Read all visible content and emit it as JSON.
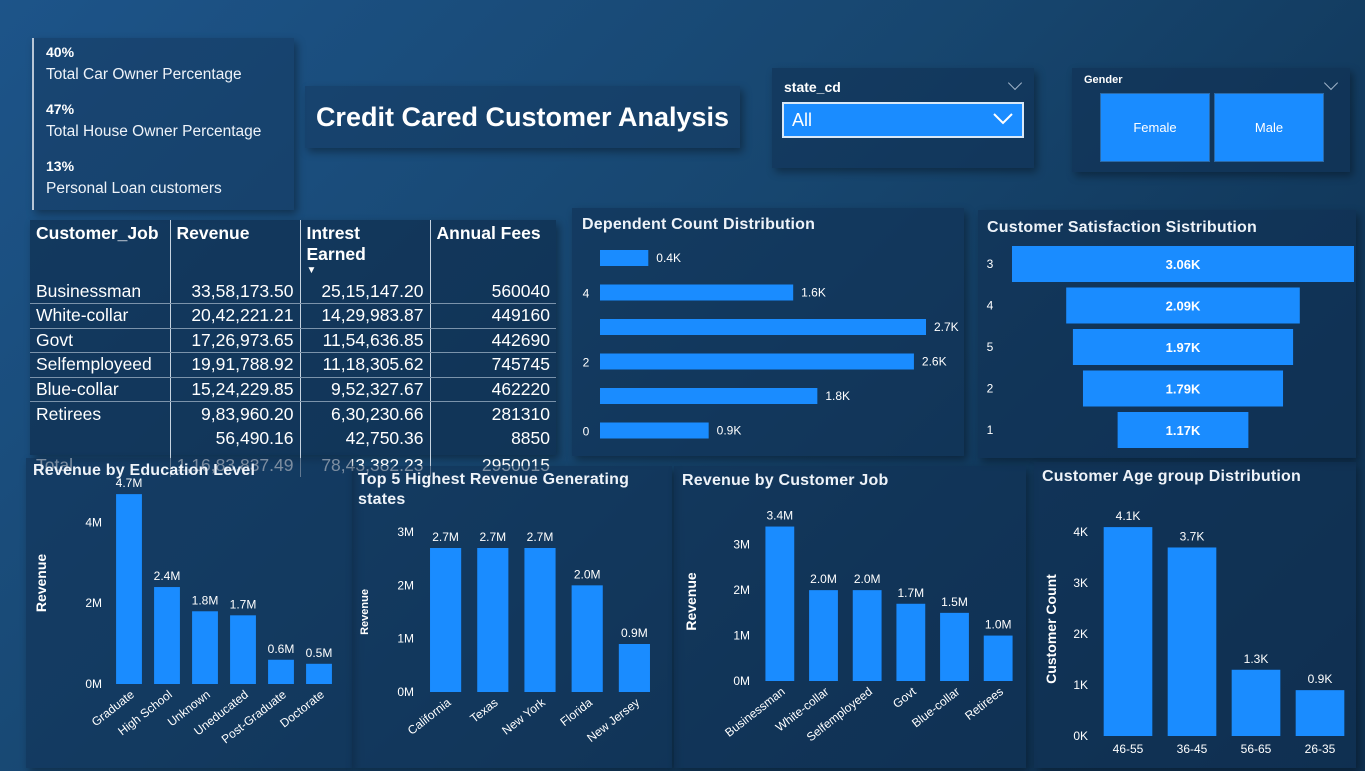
{
  "kpis": [
    {
      "value": "40%",
      "label": "Total Car Owner Percentage"
    },
    {
      "value": "47%",
      "label": "Total House Owner Percentage"
    },
    {
      "value": "13%",
      "label": "Personal Loan customers"
    }
  ],
  "title": "Credit Cared Customer Analysis",
  "state_filter": {
    "label": "state_cd",
    "selected": "All"
  },
  "gender_filter": {
    "label": "Gender",
    "options": [
      "Female",
      "Male"
    ]
  },
  "colors": {
    "bar": "#1a8cff",
    "background": "#17466f"
  },
  "job_table": {
    "headers": [
      "Customer_Job",
      "Revenue",
      "Intrest Earned",
      "Annual Fees"
    ],
    "rows": [
      [
        "Businessman",
        "33,58,173.50",
        "25,15,147.20",
        "560040"
      ],
      [
        "White-collar",
        "20,42,221.21",
        "14,29,983.87",
        "449160"
      ],
      [
        "Govt",
        "17,26,973.65",
        "11,54,636.85",
        "442690"
      ],
      [
        "Selfemployeed",
        "19,91,788.92",
        "11,18,305.62",
        "745745"
      ],
      [
        "Blue-collar",
        "15,24,229.85",
        "9,52,327.67",
        "462220"
      ],
      [
        "Retirees",
        "9,83,960.20",
        "6,30,230.66",
        "281310"
      ],
      [
        "",
        "56,490.16",
        "42,750.36",
        "8850"
      ]
    ],
    "total": [
      "Total",
      "1,16,83,837.49",
      "78,43,382.23",
      "2950015"
    ]
  },
  "chart_data": [
    {
      "id": "dependent",
      "type": "bar",
      "orientation": "horizontal",
      "title": "Dependent Count Distribution",
      "categories": [
        "",
        "4",
        "",
        "2",
        "",
        "0"
      ],
      "values": [
        0.4,
        1.6,
        2.7,
        2.6,
        1.8,
        0.9
      ],
      "labels": [
        "0.4K",
        "1.6K",
        "2.7K",
        "2.6K",
        "1.8K",
        "0.9K"
      ]
    },
    {
      "id": "satisfaction",
      "type": "bar",
      "orientation": "funnel",
      "title": "Customer Satisfaction Sistribution",
      "categories": [
        "3",
        "4",
        "5",
        "2",
        "1"
      ],
      "values": [
        3.06,
        2.09,
        1.97,
        1.79,
        1.17
      ],
      "labels": [
        "3.06K",
        "2.09K",
        "1.97K",
        "1.79K",
        "1.17K"
      ]
    },
    {
      "id": "education",
      "type": "bar",
      "title": "Revenue by Education Level",
      "ylabel": "Revenue",
      "categories": [
        "Graduate",
        "High School",
        "Unknown",
        "Uneducated",
        "Post-Graduate",
        "Doctorate"
      ],
      "values": [
        4.7,
        2.4,
        1.8,
        1.7,
        0.6,
        0.5
      ],
      "labels": [
        "4.7M",
        "2.4M",
        "1.8M",
        "1.7M",
        "0.6M",
        "0.5M"
      ],
      "yticks": [
        "0M",
        "2M",
        "4M"
      ],
      "ytick_values": [
        0,
        2,
        4
      ],
      "ylim": [
        0,
        5
      ]
    },
    {
      "id": "states",
      "type": "bar",
      "title": "Top 5 Highest Revenue Generating states",
      "ylabel": "Revenue",
      "categories": [
        "California",
        "Texas",
        "New York",
        "Florida",
        "New Jersey"
      ],
      "values": [
        2.7,
        2.7,
        2.7,
        2.0,
        0.9
      ],
      "labels": [
        "2.7M",
        "2.7M",
        "2.7M",
        "2.0M",
        "0.9M"
      ],
      "yticks": [
        "0M",
        "1M",
        "2M",
        "3M"
      ],
      "ytick_values": [
        0,
        1,
        2,
        3
      ],
      "ylim": [
        0,
        3
      ]
    },
    {
      "id": "jobs",
      "type": "bar",
      "title": "Revenue by Customer Job",
      "ylabel": "Revenue",
      "categories": [
        "Businessman",
        "White-collar",
        "Selfemployeed",
        "Govt",
        "Blue-collar",
        "Retirees"
      ],
      "values": [
        3.4,
        2.0,
        2.0,
        1.7,
        1.5,
        1.0
      ],
      "labels": [
        "3.4M",
        "2.0M",
        "2.0M",
        "1.7M",
        "1.5M",
        "1.0M"
      ],
      "yticks": [
        "0M",
        "1M",
        "2M",
        "3M"
      ],
      "ytick_values": [
        0,
        1,
        2,
        3
      ],
      "ylim": [
        0,
        3.5
      ]
    },
    {
      "id": "age",
      "type": "bar",
      "title": "Customer Age group Distribution",
      "ylabel": "Customer Count",
      "categories": [
        "46-55",
        "36-45",
        "56-65",
        "26-35"
      ],
      "values": [
        4.1,
        3.7,
        1.3,
        0.9
      ],
      "labels": [
        "4.1K",
        "3.7K",
        "1.3K",
        "0.9K"
      ],
      "yticks": [
        "0K",
        "1K",
        "2K",
        "3K",
        "4K"
      ],
      "ytick_values": [
        0,
        1,
        2,
        3,
        4
      ],
      "ylim": [
        0,
        4.2
      ]
    }
  ]
}
